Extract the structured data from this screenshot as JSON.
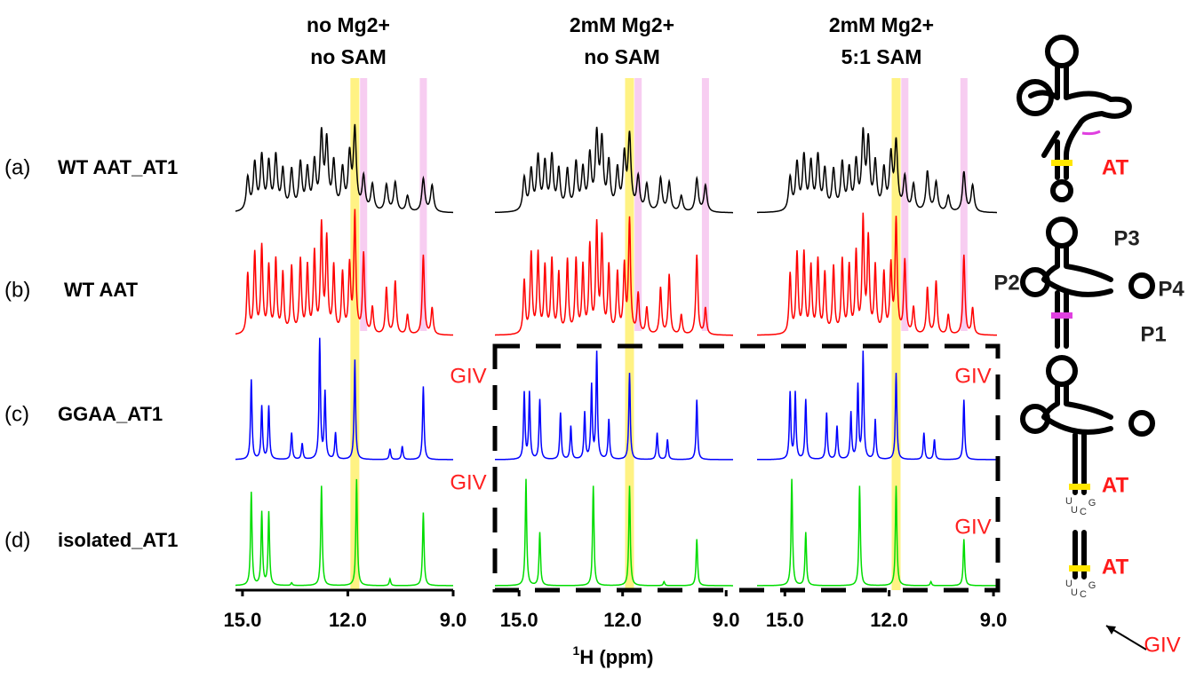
{
  "figure": {
    "rows": [
      {
        "tag": "(a)",
        "name": "WT AAT_AT1"
      },
      {
        "tag": "(b)",
        "name": "WT AAT"
      },
      {
        "tag": "(c)",
        "name": "GGAA_AT1"
      },
      {
        "tag": "(d)",
        "name": "isolated_AT1"
      }
    ],
    "xlabel_sup": "1",
    "xlabel": "H (ppm)",
    "schematic": {
      "labels": [
        "AT",
        "P3",
        "P2",
        "P4",
        "P1",
        "AT",
        "AT",
        "GIV"
      ],
      "loop_letters": [
        "U",
        "U",
        "C",
        "G"
      ]
    }
  },
  "chart_data": [
    {
      "type": "spectrum",
      "title": [
        "no Mg2+",
        "no SAM"
      ],
      "xlim": [
        15.2,
        9.0
      ],
      "xticks": [
        {
          "value": 15,
          "label": "15.0"
        },
        {
          "value": 12,
          "label": "12.0"
        },
        {
          "value": 9,
          "label": "9.0"
        }
      ],
      "main_band": {
        "x": 11.8,
        "color": "#fff176"
      },
      "side_bands": {
        "x": [
          11.55,
          9.85
        ],
        "color": "#f6c8f0"
      },
      "annotations": [
        "GIV",
        "GIV"
      ],
      "series": [
        {
          "color": "#000000",
          "width": 0.05,
          "peaks": [
            14.85,
            14.65,
            14.45,
            14.25,
            14.05,
            13.85,
            13.6,
            13.35,
            13.15,
            12.95,
            12.75,
            12.6,
            12.4,
            12.15,
            11.95,
            11.8,
            11.55,
            11.3,
            10.9,
            10.65,
            10.3,
            9.85,
            9.6
          ],
          "heights": [
            0.25,
            0.35,
            0.4,
            0.35,
            0.4,
            0.3,
            0.3,
            0.35,
            0.3,
            0.35,
            0.55,
            0.5,
            0.35,
            0.3,
            0.4,
            0.6,
            0.25,
            0.2,
            0.2,
            0.22,
            0.12,
            0.25,
            0.2
          ]
        },
        {
          "color": "#ff0000",
          "width": 0.035,
          "peaks": [
            14.85,
            14.65,
            14.45,
            14.25,
            14.05,
            13.85,
            13.6,
            13.35,
            13.15,
            12.95,
            12.75,
            12.6,
            12.4,
            12.15,
            11.95,
            11.8,
            11.55,
            11.3,
            10.9,
            10.65,
            10.3,
            9.85,
            9.6
          ],
          "heights": [
            0.45,
            0.6,
            0.65,
            0.5,
            0.55,
            0.45,
            0.5,
            0.55,
            0.5,
            0.6,
            0.8,
            0.7,
            0.5,
            0.45,
            0.5,
            0.9,
            0.6,
            0.2,
            0.35,
            0.4,
            0.15,
            0.6,
            0.2
          ]
        },
        {
          "color": "#0000ff",
          "width": 0.025,
          "peaks": [
            14.75,
            14.45,
            14.25,
            13.6,
            13.3,
            12.8,
            12.65,
            12.35,
            11.8,
            10.8,
            10.45,
            9.85
          ],
          "heights": [
            0.6,
            0.4,
            0.4,
            0.2,
            0.12,
            0.9,
            0.5,
            0.2,
            0.75,
            0.08,
            0.1,
            0.55
          ]
        },
        {
          "color": "#00dd00",
          "width": 0.025,
          "peaks": [
            14.75,
            14.45,
            14.25,
            13.6,
            12.75,
            11.75,
            10.8,
            9.85
          ],
          "heights": [
            0.7,
            0.55,
            0.55,
            0.02,
            0.75,
            0.8,
            0.05,
            0.55
          ]
        }
      ]
    },
    {
      "type": "spectrum",
      "title": [
        "2mM Mg2+",
        "no SAM"
      ],
      "xlim": [
        15.7,
        8.8
      ],
      "xticks": [
        {
          "value": 15,
          "label": "15.0"
        },
        {
          "value": 12,
          "label": "12.0"
        },
        {
          "value": 9,
          "label": "9.0"
        }
      ],
      "main_band": {
        "x": 11.8,
        "color": "#fff176"
      },
      "side_bands": {
        "x": [
          11.55,
          9.6
        ],
        "color": "#f6c8f0"
      },
      "annotations": [],
      "series": [
        {
          "color": "#000000",
          "width": 0.05,
          "peaks": [
            14.85,
            14.65,
            14.45,
            14.25,
            14.05,
            13.85,
            13.6,
            13.35,
            13.15,
            12.95,
            12.75,
            12.6,
            12.4,
            12.15,
            11.95,
            11.8,
            11.55,
            11.3,
            10.9,
            10.65,
            10.3,
            9.85,
            9.6
          ],
          "heights": [
            0.25,
            0.3,
            0.4,
            0.35,
            0.4,
            0.3,
            0.3,
            0.35,
            0.3,
            0.4,
            0.55,
            0.5,
            0.35,
            0.3,
            0.4,
            0.55,
            0.25,
            0.2,
            0.25,
            0.22,
            0.12,
            0.25,
            0.2
          ]
        },
        {
          "color": "#ff0000",
          "width": 0.035,
          "peaks": [
            14.85,
            14.65,
            14.45,
            14.25,
            14.05,
            13.85,
            13.6,
            13.35,
            13.15,
            12.95,
            12.75,
            12.6,
            12.4,
            12.15,
            11.95,
            11.8,
            11.55,
            11.3,
            10.9,
            10.65,
            10.3,
            9.85,
            9.6
          ],
          "heights": [
            0.4,
            0.6,
            0.6,
            0.5,
            0.55,
            0.45,
            0.55,
            0.55,
            0.5,
            0.65,
            0.8,
            0.7,
            0.5,
            0.45,
            0.5,
            0.85,
            0.3,
            0.2,
            0.35,
            0.45,
            0.15,
            0.6,
            0.2
          ]
        },
        {
          "color": "#0000ff",
          "width": 0.025,
          "peaks": [
            14.85,
            14.7,
            14.4,
            13.8,
            13.5,
            13.1,
            12.9,
            12.75,
            12.4,
            11.8,
            11.0,
            10.7,
            9.85
          ],
          "heights": [
            0.5,
            0.5,
            0.45,
            0.35,
            0.25,
            0.35,
            0.55,
            0.8,
            0.3,
            0.65,
            0.2,
            0.15,
            0.45
          ]
        },
        {
          "color": "#00dd00",
          "width": 0.025,
          "peaks": [
            14.8,
            14.4,
            12.85,
            11.8,
            10.8,
            9.85
          ],
          "heights": [
            0.8,
            0.4,
            0.75,
            0.75,
            0.03,
            0.35
          ]
        }
      ]
    },
    {
      "type": "spectrum",
      "title": [
        "2mM Mg2+",
        "5:1 SAM"
      ],
      "xlim": [
        15.8,
        8.9
      ],
      "xticks": [
        {
          "value": 15,
          "label": "15.0"
        },
        {
          "value": 12,
          "label": "12.0"
        },
        {
          "value": 9,
          "label": "9.0"
        }
      ],
      "main_band": {
        "x": 11.8,
        "color": "#fff176"
      },
      "side_bands": {
        "x": [
          11.55,
          9.85
        ],
        "color": "#f6c8f0"
      },
      "annotations": [
        "GIV",
        "GIV"
      ],
      "series": [
        {
          "color": "#000000",
          "width": 0.05,
          "peaks": [
            14.85,
            14.65,
            14.45,
            14.25,
            14.05,
            13.85,
            13.6,
            13.35,
            13.15,
            12.95,
            12.75,
            12.6,
            12.4,
            12.15,
            11.95,
            11.8,
            11.55,
            11.3,
            10.9,
            10.65,
            10.3,
            9.85,
            9.6
          ],
          "heights": [
            0.25,
            0.35,
            0.4,
            0.35,
            0.4,
            0.3,
            0.3,
            0.35,
            0.3,
            0.35,
            0.55,
            0.5,
            0.35,
            0.3,
            0.4,
            0.5,
            0.25,
            0.2,
            0.3,
            0.22,
            0.12,
            0.3,
            0.2
          ]
        },
        {
          "color": "#ff0000",
          "width": 0.035,
          "peaks": [
            14.85,
            14.65,
            14.45,
            14.25,
            14.05,
            13.85,
            13.6,
            13.35,
            13.15,
            12.95,
            12.75,
            12.6,
            12.4,
            12.15,
            11.95,
            11.8,
            11.55,
            11.3,
            10.9,
            10.65,
            10.3,
            9.85,
            9.6
          ],
          "heights": [
            0.45,
            0.6,
            0.6,
            0.5,
            0.55,
            0.45,
            0.5,
            0.55,
            0.5,
            0.6,
            0.85,
            0.7,
            0.5,
            0.45,
            0.5,
            0.85,
            0.55,
            0.2,
            0.35,
            0.4,
            0.15,
            0.6,
            0.2
          ]
        },
        {
          "color": "#0000ff",
          "width": 0.025,
          "peaks": [
            14.85,
            14.7,
            14.4,
            13.8,
            13.5,
            13.1,
            12.9,
            12.75,
            12.4,
            11.8,
            11.0,
            10.7,
            9.85
          ],
          "heights": [
            0.5,
            0.5,
            0.45,
            0.35,
            0.25,
            0.35,
            0.55,
            0.8,
            0.3,
            0.65,
            0.2,
            0.15,
            0.45
          ]
        },
        {
          "color": "#00dd00",
          "width": 0.025,
          "peaks": [
            14.8,
            14.4,
            12.85,
            11.8,
            10.8,
            9.85
          ],
          "heights": [
            0.8,
            0.4,
            0.75,
            0.75,
            0.03,
            0.35
          ]
        }
      ]
    }
  ]
}
